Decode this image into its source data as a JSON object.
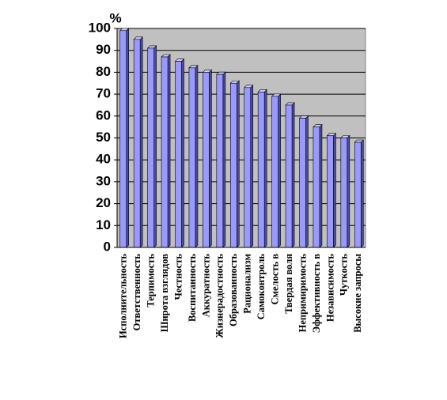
{
  "chart_data": {
    "type": "bar",
    "y_label": "%",
    "categories": [
      "Исполнительность",
      "Ответственность",
      "Терпимость",
      "Широта взглядов",
      "Честность",
      "Воспитанность",
      "Аккуратность",
      "Жизнерадостность",
      "Образованность",
      "Рационализм",
      "Самоконтроль",
      "Смелость в",
      "Твердая воля",
      "Непримиримость",
      "Эффективность в",
      "Независимость",
      "Чуткость",
      "Высокие запросы"
    ],
    "values": [
      99,
      95,
      91,
      87,
      85,
      82,
      80,
      79,
      75,
      73,
      71,
      69,
      65,
      59,
      55,
      51,
      50,
      48
    ],
    "color": "#9999ff",
    "ylim": [
      0,
      100
    ],
    "yticks": [
      0,
      10,
      20,
      30,
      40,
      50,
      60,
      70,
      80,
      90,
      100
    ],
    "grid": true
  }
}
